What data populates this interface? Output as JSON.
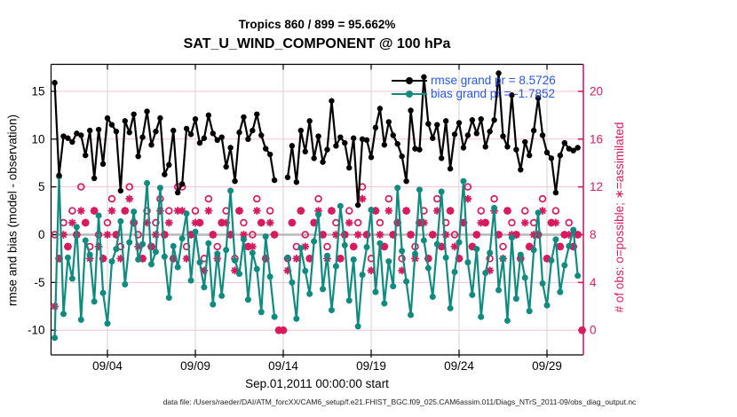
{
  "chart_data": {
    "type": "line",
    "title": "Tropics 860 / 899 = 95.662%",
    "subtitle": "SAT_U_WIND_COMPONENT @ 100 hPa",
    "xlabel": "Sep.01,2011 00:00:00 start",
    "ylabel_left": "rmse and bias (model - observation)",
    "ylabel_right": "# of obs: o=possible; ∗=assimilated",
    "footer": "data file: /Users/raeder/DAI/ATM_forcXX/CAM6_setup/f.e21.FHIST_BGC.f09_025.CAM6assim.011/Diags_NTrS_2011-09/obs_diag_output.nc",
    "rmse_grand": 8.5726,
    "bias_grand": -1.7852,
    "legend": [
      {
        "label": "rmse grand pr = 8.5726",
        "series": "rmse",
        "color": "#000000"
      },
      {
        "label": "bias grand pr = -1.7852",
        "series": "bias",
        "color": "#0F8B80"
      }
    ],
    "x_tick_labels": [
      "09/04",
      "09/09",
      "09/14",
      "09/19",
      "09/24",
      "09/29"
    ],
    "x_tick_days": [
      4,
      9,
      14,
      19,
      24,
      29
    ],
    "yticks_left": [
      15,
      10,
      5,
      0,
      -5,
      -10
    ],
    "yticks_right": [
      20,
      16,
      12,
      8,
      4,
      0
    ],
    "ylim_left": [
      -12.6,
      17.8
    ],
    "ylim_right": [
      -2.1,
      22.2
    ],
    "grid": true,
    "legend_position": "top-right-inside",
    "time_step_hours": 6,
    "start_day": "2011-09-01 00:00",
    "series": [
      {
        "name": "rmse",
        "axis": "left",
        "color": "#000000",
        "marker": "filled-circle",
        "values": [
          15.9,
          6.2,
          10.3,
          10.1,
          9.7,
          10.6,
          10.4,
          8.3,
          10.9,
          5.9,
          11.0,
          7.4,
          12.2,
          11.5,
          10.8,
          4.6,
          11.9,
          10.7,
          12.6,
          8.2,
          10.2,
          12.9,
          9.4,
          10.8,
          12.2,
          6.3,
          7.3,
          10.9,
          4.4,
          5.3,
          11.1,
          10.5,
          12.1,
          9.6,
          10.1,
          12.5,
          10.6,
          9.9,
          10.2,
          7.1,
          9.1,
          5.6,
          10.7,
          12.3,
          10.0,
          10.9,
          12.6,
          10.4,
          9.0,
          8.4,
          5.7,
          null,
          null,
          6.0,
          9.3,
          5.5,
          10.9,
          8.7,
          11.9,
          8.0,
          10.3,
          7.6,
          8.9,
          14.0,
          9.3,
          10.2,
          9.6,
          7.0,
          10.1,
          3.1,
          10.0,
          9.9,
          8.1,
          11.2,
          13.2,
          9.4,
          11.8,
          10.4,
          9.5,
          8.2,
          5.6,
          13.0,
          9.0,
          8.9,
          16.5,
          11.6,
          10.1,
          11.5,
          8.0,
          11.9,
          6.9,
          10.5,
          11.7,
          9.1,
          10.4,
          12.0,
          10.6,
          12.1,
          9.2,
          10.8,
          12.0,
          16.9,
          10.3,
          9.2,
          14.6,
          8.9,
          6.8,
          9.7,
          8.3,
          10.9,
          14.3,
          10.4,
          8.6,
          8.0,
          4.4,
          8.3,
          9.6,
          9.0,
          8.8,
          9.1,
          null
        ]
      },
      {
        "name": "bias",
        "axis": "left",
        "color": "#0F8B80",
        "marker": "filled-circle",
        "values": [
          -10.8,
          6.1,
          -8.3,
          -2.4,
          -4.6,
          0.8,
          -8.9,
          -0.6,
          -2.1,
          -7.0,
          2.0,
          -6.1,
          -9.3,
          -2.8,
          -1.5,
          1.4,
          -5.2,
          -0.8,
          2.4,
          -2.6,
          -1.0,
          5.4,
          -3.1,
          -1.8,
          4.9,
          -2.3,
          -6.6,
          -1.2,
          -3.4,
          -0.4,
          2.2,
          -4.8,
          0.3,
          -2.9,
          -5.5,
          -0.9,
          -7.3,
          -2.0,
          -6.4,
          -1.6,
          4.6,
          -2.7,
          -4.1,
          -0.5,
          -6.8,
          -1.9,
          -3.6,
          -8.1,
          -0.2,
          -4.4,
          -8.6,
          null,
          null,
          -2.4,
          -5.0,
          -8.8,
          -1.4,
          -3.8,
          -6.2,
          -0.7,
          2.1,
          -5.7,
          -2.2,
          -7.9,
          -3.3,
          3.0,
          -1.1,
          -6.9,
          -2.6,
          -9.6,
          -4.2,
          -1.3,
          2.6,
          -6.0,
          -0.9,
          -7.2,
          -2.8,
          -5.4,
          4.9,
          -1.7,
          -4.9,
          -8.4,
          -2.0,
          4.7,
          -0.6,
          -3.5,
          -6.5,
          -1.0,
          4.5,
          -2.4,
          -7.7,
          -3.9,
          -0.8,
          5.6,
          -2.9,
          -6.3,
          -1.5,
          -8.6,
          -4.0,
          -1.9,
          2.8,
          -5.8,
          -2.5,
          -9.0,
          -0.3,
          -6.7,
          -2.1,
          -4.5,
          -8.0,
          -1.6,
          2.3,
          -5.1,
          -7.4,
          -2.7,
          -0.5,
          -6.0,
          -3.2,
          -1.2,
          0.5,
          -4.3,
          null
        ]
      },
      {
        "name": "n_possible",
        "axis": "right",
        "color": "#D81B60",
        "marker": "open-circle",
        "values": [
          8,
          6,
          9,
          7,
          10,
          8,
          12,
          9,
          7,
          10,
          8,
          6,
          9,
          11,
          8,
          7,
          10,
          12,
          9,
          8,
          6,
          10,
          7,
          9,
          11,
          8,
          10,
          6,
          12,
          12,
          7,
          8,
          10,
          9,
          6,
          11,
          8,
          7,
          9,
          10,
          8,
          6,
          10,
          9,
          7,
          8,
          11,
          9,
          6,
          10,
          8,
          0,
          0,
          6,
          9,
          7,
          10,
          8,
          6,
          9,
          11,
          8,
          7,
          10,
          9,
          6,
          8,
          10,
          7,
          9,
          12,
          8,
          6,
          10,
          9,
          7,
          11,
          8,
          9,
          6,
          10,
          8,
          7,
          9,
          10,
          6,
          8,
          11,
          7,
          9,
          10,
          8,
          6,
          9,
          12,
          7,
          8,
          10,
          9,
          6,
          11,
          8,
          7,
          10,
          9,
          8,
          6,
          10,
          7,
          9,
          8,
          11,
          6,
          9,
          10,
          7,
          8,
          9,
          7,
          8,
          0
        ]
      },
      {
        "name": "n_assimilated",
        "axis": "right",
        "color": "#D81B60",
        "marker": "asterisk",
        "values": [
          2,
          6,
          8,
          7,
          9,
          8,
          10,
          9,
          6,
          10,
          7,
          6,
          8,
          10,
          8,
          6,
          10,
          11,
          9,
          7,
          6,
          9,
          7,
          8,
          10,
          8,
          9,
          6,
          10,
          10,
          6,
          8,
          9,
          9,
          5,
          10,
          8,
          6,
          9,
          9,
          8,
          5,
          10,
          8,
          7,
          7,
          10,
          9,
          6,
          9,
          8,
          0,
          0,
          5,
          9,
          6,
          10,
          7,
          6,
          9,
          10,
          8,
          6,
          10,
          8,
          6,
          8,
          9,
          7,
          8,
          11,
          8,
          5,
          10,
          8,
          7,
          10,
          8,
          9,
          5,
          10,
          8,
          6,
          9,
          9,
          6,
          8,
          10,
          7,
          8,
          10,
          7,
          6,
          9,
          11,
          7,
          8,
          9,
          9,
          5,
          10,
          8,
          6,
          10,
          8,
          8,
          6,
          9,
          7,
          8,
          8,
          10,
          6,
          9,
          9,
          7,
          8,
          8,
          7,
          8,
          0
        ]
      }
    ],
    "colors": {
      "rmse": "#000000",
      "bias": "#0F8B80",
      "obs_counts": "#D81B60",
      "legend_text": "#2857E0",
      "right_axis": "#D81B60",
      "grid_horizontal": "#F3C3D5",
      "grid_vertical": "#D8D2D5",
      "zero_line": "#B9B9B9"
    }
  }
}
